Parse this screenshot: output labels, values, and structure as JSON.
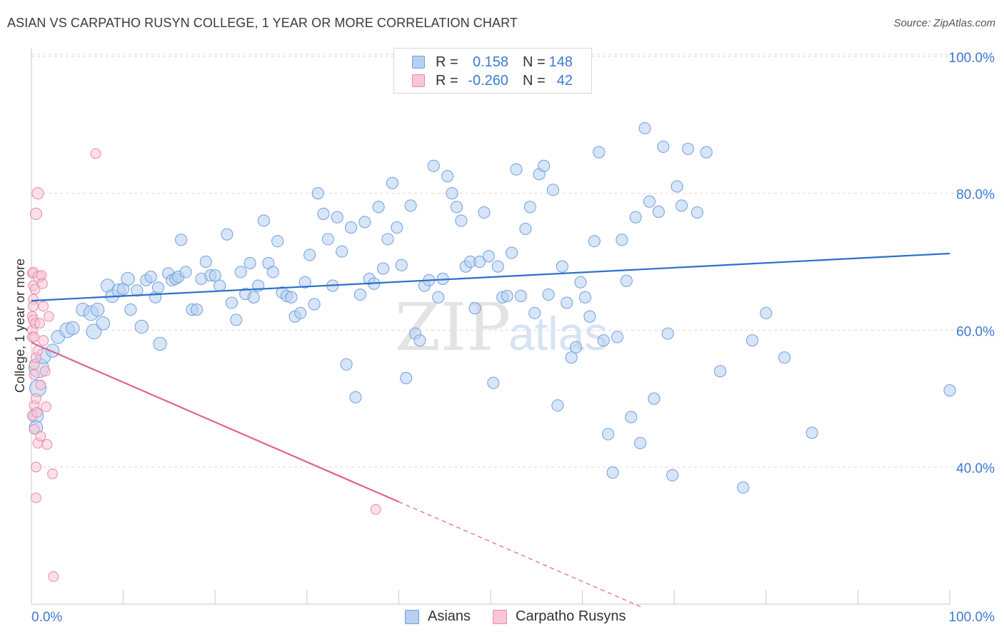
{
  "header": {
    "title": "ASIAN VS CARPATHO RUSYN COLLEGE, 1 YEAR OR MORE CORRELATION CHART",
    "source": "Source: ZipAtlas.com"
  },
  "legend": {
    "rows": [
      {
        "r_label": "R =",
        "r_value": "0.158",
        "n_label": "N =",
        "n_value": "148",
        "color": "#aac8f0"
      },
      {
        "r_label": "R =",
        "r_value": "-0.260",
        "n_label": "N =",
        "n_value": "42",
        "color": "#f6b8cc"
      }
    ]
  },
  "bottom_legend": {
    "items": [
      {
        "label": "Asians",
        "color": "#aac8f0"
      },
      {
        "label": "Carpatho Rusyns",
        "color": "#f6b8cc"
      }
    ]
  },
  "watermark": {
    "zip": "ZIP",
    "atlas": "atlas"
  },
  "colors": {
    "asian_fill": "#b7d0f2",
    "asian_stroke": "#6f9fdc",
    "asian_line": "#2c6fcb",
    "rusyn_fill": "#f8c6d6",
    "rusyn_stroke": "#e889a8",
    "rusyn_line": "#e0628c",
    "tick_label": "#3d7ad1",
    "grid": "#d9d9d9"
  },
  "chart_data": {
    "type": "scatter",
    "title": "ASIAN VS CARPATHO RUSYN COLLEGE, 1 YEAR OR MORE CORRELATION CHART",
    "xlabel": "",
    "ylabel": "College, 1 year or more",
    "xlim": [
      0,
      100
    ],
    "ylim": [
      20,
      102
    ],
    "x_tick_labels": [
      "0.0%",
      "100.0%"
    ],
    "y_tick_labels": [
      "40.0%",
      "60.0%",
      "80.0%",
      "100.0%"
    ],
    "y_ticks": [
      40,
      60,
      80,
      100
    ],
    "grid": true,
    "series": [
      {
        "name": "Asians",
        "r": 0.158,
        "n": 148,
        "trend": {
          "x": [
            0,
            100
          ],
          "y": [
            64.3,
            71.2
          ],
          "dashed_from": null
        },
        "points": [
          [
            0.5,
            47.5,
            9
          ],
          [
            0.5,
            45.8,
            8
          ],
          [
            0.7,
            51.5,
            10
          ],
          [
            0.8,
            54.5,
            12
          ],
          [
            1.3,
            56.2,
            9
          ],
          [
            2.3,
            57.0,
            8
          ],
          [
            2.9,
            59.0,
            8
          ],
          [
            3.9,
            60.0,
            9
          ],
          [
            4.5,
            60.3,
            8
          ],
          [
            6.8,
            59.8,
            9
          ],
          [
            5.6,
            63.0,
            8
          ],
          [
            6.5,
            62.5,
            9
          ],
          [
            7.2,
            63.0,
            8
          ],
          [
            7.8,
            61.0,
            8
          ],
          [
            8.3,
            66.5,
            8
          ],
          [
            8.8,
            65.0,
            8
          ],
          [
            9.5,
            65.8,
            8
          ],
          [
            10.0,
            66.0,
            7
          ],
          [
            10.5,
            67.5,
            8
          ],
          [
            10.8,
            63.0,
            7
          ],
          [
            11.5,
            65.8,
            7
          ],
          [
            12.0,
            60.5,
            8
          ],
          [
            12.5,
            67.3,
            7
          ],
          [
            13.0,
            67.8,
            7
          ],
          [
            13.5,
            64.8,
            7
          ],
          [
            13.8,
            66.2,
            7
          ],
          [
            14.0,
            58.0,
            8
          ],
          [
            14.9,
            68.3,
            7
          ],
          [
            15.3,
            67.3,
            7
          ],
          [
            15.7,
            67.5,
            7
          ],
          [
            16.0,
            67.8,
            7
          ],
          [
            16.3,
            73.2,
            7
          ],
          [
            16.8,
            68.5,
            7
          ],
          [
            17.5,
            63.0,
            7
          ],
          [
            18.0,
            63.0,
            7
          ],
          [
            18.5,
            67.5,
            7
          ],
          [
            19.0,
            70.0,
            7
          ],
          [
            19.5,
            68.0,
            7
          ],
          [
            20.0,
            68.0,
            7
          ],
          [
            20.5,
            66.5,
            7
          ],
          [
            21.3,
            74.0,
            7
          ],
          [
            21.8,
            64.0,
            7
          ],
          [
            22.3,
            61.5,
            7
          ],
          [
            22.8,
            68.5,
            7
          ],
          [
            23.3,
            65.3,
            7
          ],
          [
            23.8,
            69.8,
            7
          ],
          [
            24.2,
            64.8,
            7
          ],
          [
            24.7,
            66.5,
            7
          ],
          [
            25.3,
            76.0,
            7
          ],
          [
            25.8,
            69.8,
            7
          ],
          [
            26.3,
            68.5,
            7
          ],
          [
            26.8,
            73.0,
            7
          ],
          [
            27.3,
            65.5,
            7
          ],
          [
            27.8,
            65.0,
            7
          ],
          [
            28.3,
            64.8,
            7
          ],
          [
            28.7,
            62.0,
            7
          ],
          [
            29.3,
            62.5,
            7
          ],
          [
            29.8,
            67.0,
            7
          ],
          [
            30.3,
            71.0,
            7
          ],
          [
            30.8,
            63.8,
            7
          ],
          [
            31.2,
            80.0,
            7
          ],
          [
            31.8,
            77.0,
            7
          ],
          [
            32.3,
            73.3,
            7
          ],
          [
            32.8,
            66.5,
            7
          ],
          [
            33.3,
            76.5,
            7
          ],
          [
            33.8,
            71.5,
            7
          ],
          [
            34.3,
            55.0,
            7
          ],
          [
            34.8,
            75.0,
            7
          ],
          [
            35.3,
            50.2,
            7
          ],
          [
            35.8,
            65.2,
            7
          ],
          [
            36.3,
            75.8,
            7
          ],
          [
            36.8,
            67.5,
            7
          ],
          [
            37.3,
            66.8,
            7
          ],
          [
            37.8,
            78.0,
            7
          ],
          [
            38.3,
            69.0,
            7
          ],
          [
            38.8,
            73.3,
            7
          ],
          [
            39.3,
            81.5,
            7
          ],
          [
            39.8,
            75.0,
            7
          ],
          [
            40.3,
            69.5,
            7
          ],
          [
            40.8,
            53.0,
            7
          ],
          [
            41.3,
            78.2,
            7
          ],
          [
            41.8,
            59.5,
            7
          ],
          [
            42.3,
            58.5,
            7
          ],
          [
            42.8,
            66.5,
            7
          ],
          [
            43.3,
            67.3,
            7
          ],
          [
            43.8,
            84.0,
            7
          ],
          [
            44.3,
            64.8,
            7
          ],
          [
            44.8,
            67.5,
            7
          ],
          [
            45.3,
            82.5,
            7
          ],
          [
            45.8,
            80.0,
            7
          ],
          [
            46.3,
            78.0,
            7
          ],
          [
            46.8,
            76.0,
            7
          ],
          [
            47.3,
            69.3,
            7
          ],
          [
            47.8,
            70.0,
            7
          ],
          [
            48.3,
            63.2,
            7
          ],
          [
            48.8,
            70.0,
            7
          ],
          [
            49.3,
            77.2,
            7
          ],
          [
            49.8,
            70.8,
            7
          ],
          [
            50.3,
            52.3,
            7
          ],
          [
            50.8,
            69.3,
            7
          ],
          [
            51.3,
            64.8,
            7
          ],
          [
            51.8,
            65.0,
            7
          ],
          [
            52.3,
            71.3,
            7
          ],
          [
            52.8,
            83.5,
            7
          ],
          [
            53.3,
            65.0,
            7
          ],
          [
            53.8,
            74.8,
            7
          ],
          [
            54.3,
            78.0,
            7
          ],
          [
            54.8,
            62.5,
            7
          ],
          [
            55.3,
            82.8,
            7
          ],
          [
            55.8,
            84.0,
            7
          ],
          [
            56.3,
            65.2,
            7
          ],
          [
            56.8,
            80.5,
            7
          ],
          [
            57.3,
            49.0,
            7
          ],
          [
            57.8,
            69.3,
            7
          ],
          [
            58.3,
            64.0,
            7
          ],
          [
            58.8,
            56.0,
            7
          ],
          [
            59.3,
            57.5,
            7
          ],
          [
            59.8,
            67.0,
            7
          ],
          [
            60.3,
            64.8,
            7
          ],
          [
            60.8,
            62.0,
            7
          ],
          [
            61.3,
            73.0,
            7
          ],
          [
            61.8,
            86.0,
            7
          ],
          [
            62.3,
            58.5,
            7
          ],
          [
            62.8,
            44.8,
            7
          ],
          [
            63.3,
            39.2,
            7
          ],
          [
            63.8,
            59.0,
            7
          ],
          [
            64.3,
            73.2,
            7
          ],
          [
            64.8,
            67.2,
            7
          ],
          [
            65.3,
            47.3,
            7
          ],
          [
            65.8,
            76.5,
            7
          ],
          [
            66.3,
            43.5,
            7
          ],
          [
            66.8,
            89.5,
            7
          ],
          [
            67.3,
            78.8,
            7
          ],
          [
            67.8,
            50.0,
            7
          ],
          [
            68.3,
            77.3,
            7
          ],
          [
            68.8,
            86.8,
            7
          ],
          [
            69.3,
            59.5,
            7
          ],
          [
            69.8,
            38.8,
            7
          ],
          [
            70.3,
            81.0,
            7
          ],
          [
            70.8,
            78.2,
            7
          ],
          [
            71.5,
            86.5,
            7
          ],
          [
            72.5,
            77.2,
            7
          ],
          [
            73.5,
            86.0,
            7
          ],
          [
            75.0,
            54.0,
            7
          ],
          [
            77.5,
            37.0,
            7
          ],
          [
            78.5,
            58.5,
            7
          ],
          [
            80.0,
            62.5,
            7
          ],
          [
            82.0,
            56.0,
            7
          ],
          [
            85.0,
            45.0,
            7
          ],
          [
            100.0,
            51.2,
            7
          ]
        ]
      },
      {
        "name": "Carpatho Rusyns",
        "r": -0.26,
        "n": 42,
        "trend": {
          "x": [
            0,
            66.5
          ],
          "y": [
            58.2,
            19.5
          ],
          "dashed_from": 40
        },
        "points": [
          [
            0.1,
            68.3,
            6
          ],
          [
            0.1,
            62.0,
            6
          ],
          [
            0.1,
            60.0,
            6
          ],
          [
            0.1,
            59.0,
            6
          ],
          [
            0.1,
            47.5,
            6
          ],
          [
            0.2,
            68.5,
            6
          ],
          [
            0.2,
            66.5,
            6
          ],
          [
            0.2,
            64.5,
            6
          ],
          [
            0.2,
            63.5,
            6
          ],
          [
            0.2,
            61.5,
            6
          ],
          [
            0.3,
            59.0,
            6
          ],
          [
            0.3,
            55.0,
            6
          ],
          [
            0.3,
            53.5,
            6
          ],
          [
            0.3,
            49.0,
            6
          ],
          [
            0.3,
            45.5,
            6
          ],
          [
            0.4,
            66.0,
            6
          ],
          [
            0.4,
            61.0,
            6
          ],
          [
            0.5,
            56.0,
            6
          ],
          [
            0.5,
            50.0,
            6
          ],
          [
            0.5,
            40.0,
            6
          ],
          [
            0.5,
            77.0,
            7
          ],
          [
            0.5,
            35.5,
            6
          ],
          [
            0.6,
            48.0,
            6
          ],
          [
            0.7,
            57.0,
            6
          ],
          [
            0.7,
            43.5,
            6
          ],
          [
            0.7,
            80.0,
            7
          ],
          [
            0.8,
            67.8,
            7
          ],
          [
            0.9,
            61.0,
            6
          ],
          [
            1.0,
            52.0,
            6
          ],
          [
            1.0,
            44.5,
            6
          ],
          [
            1.1,
            68.0,
            6
          ],
          [
            1.2,
            66.8,
            6
          ],
          [
            1.3,
            63.5,
            6
          ],
          [
            1.3,
            58.5,
            6
          ],
          [
            1.5,
            54.0,
            6
          ],
          [
            1.6,
            48.8,
            6
          ],
          [
            1.7,
            43.3,
            6
          ],
          [
            1.9,
            62.0,
            6
          ],
          [
            2.3,
            39.0,
            6
          ],
          [
            2.4,
            24.0,
            6
          ],
          [
            7.0,
            85.8,
            6
          ],
          [
            37.5,
            33.8,
            6
          ]
        ]
      }
    ]
  }
}
